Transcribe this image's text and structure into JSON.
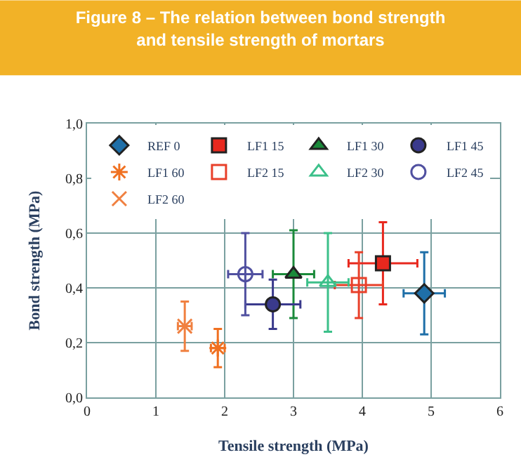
{
  "chart_data": {
    "type": "scatter",
    "title": "Figure 8 – The relation between bond strength and tensile strength of mortars",
    "xlabel": "Tensile strength (MPa)",
    "ylabel": "Bond strength (MPa)",
    "xlim": [
      0,
      6
    ],
    "xticks": [
      0,
      1,
      2,
      3,
      4,
      5,
      6
    ],
    "ylim": [
      0,
      1
    ],
    "yticks": [
      {
        "value": 0,
        "label": "0,0"
      },
      {
        "value": 0.2,
        "label": "0,2"
      },
      {
        "value": 0.4,
        "label": "0,4"
      },
      {
        "value": 0.6,
        "label": "0,6"
      },
      {
        "value": 0.8,
        "label": "0,8"
      },
      {
        "value": 1,
        "label": "1,0"
      }
    ],
    "grid": true,
    "legend": "top",
    "series": [
      {
        "name": "REF 0",
        "color": "#1f6fa8",
        "marker": "diamond",
        "x": [
          4.9
        ],
        "values": [
          0.38
        ],
        "errors": [
          0.15
        ],
        "xerrors": [
          0.3
        ]
      },
      {
        "name": "LF1 15",
        "color": "#e8281e",
        "marker": "square",
        "x": [
          4.3
        ],
        "values": [
          0.49
        ],
        "errors": [
          0.15
        ],
        "xerrors": [
          0.5
        ]
      },
      {
        "name": "LF1 30",
        "color": "#1a8a3a",
        "marker": "triangle",
        "x": [
          3.0
        ],
        "values": [
          0.45
        ],
        "errors": [
          0.16
        ],
        "xerrors": [
          0.3
        ]
      },
      {
        "name": "LF1 45",
        "color": "#3a3a8c",
        "marker": "circle",
        "x": [
          2.7
        ],
        "values": [
          0.34
        ],
        "errors": [
          0.09
        ],
        "xerrors": [
          0.4
        ]
      },
      {
        "name": "LF1 60",
        "color": "#f07020",
        "marker": "cross",
        "x": [
          1.9
        ],
        "values": [
          0.18
        ],
        "errors": [
          0.07
        ],
        "xerrors": [
          0.1
        ]
      },
      {
        "name": "LF2 15",
        "color": "#e8402a",
        "marker": "square-open",
        "x": [
          3.95
        ],
        "values": [
          0.41
        ],
        "errors": [
          0.12
        ],
        "xerrors": [
          0.35
        ]
      },
      {
        "name": "LF2 30",
        "color": "#3cc08a",
        "marker": "triangle-open",
        "x": [
          3.5
        ],
        "values": [
          0.42
        ],
        "errors": [
          0.18
        ],
        "xerrors": [
          0.3
        ]
      },
      {
        "name": "LF2 45",
        "color": "#5050a0",
        "marker": "circle-open",
        "x": [
          2.3
        ],
        "values": [
          0.45
        ],
        "errors": [
          0.15
        ],
        "xerrors": [
          0.25
        ]
      },
      {
        "name": "LF2 60",
        "color": "#f08040",
        "marker": "cross-open",
        "x": [
          1.42
        ],
        "values": [
          0.26
        ],
        "errors": [
          0.09
        ],
        "xerrors": [
          0.1
        ]
      }
    ]
  }
}
